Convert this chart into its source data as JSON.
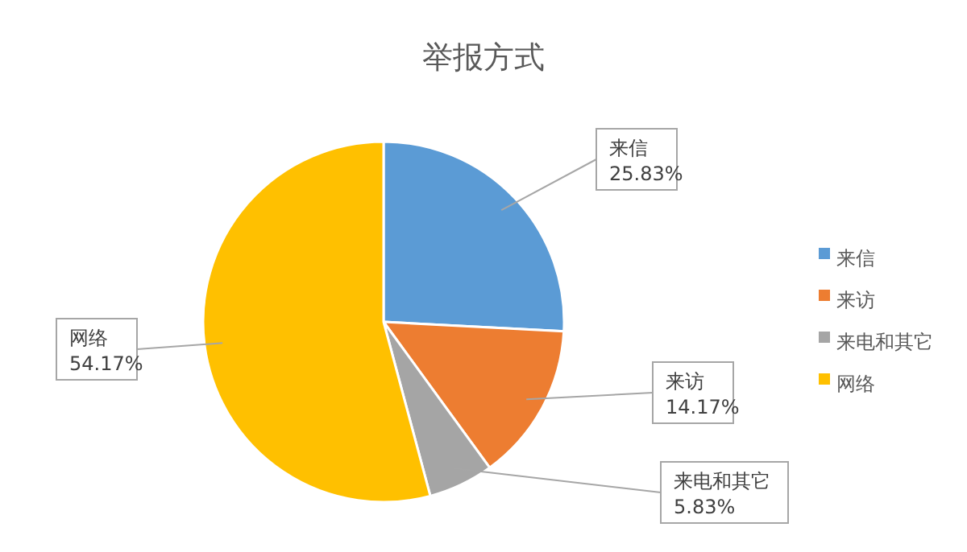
{
  "chart_data": {
    "type": "pie",
    "title": "举报方式",
    "categories": [
      "来信",
      "来访",
      "来电和其它",
      "网络"
    ],
    "values": [
      25.83,
      14.17,
      5.83,
      54.17
    ],
    "colors": [
      "#5b9bd5",
      "#ed7d31",
      "#a5a5a5",
      "#ffc000"
    ],
    "value_labels": [
      "25.83%",
      "14.17%",
      "5.83%",
      "54.17%"
    ],
    "legend": "right"
  }
}
